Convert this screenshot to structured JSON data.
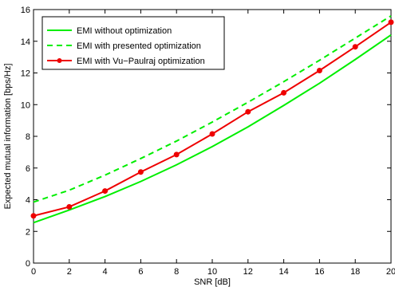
{
  "chart_data": {
    "type": "line",
    "xlabel": "SNR [dB]",
    "ylabel": "Expected mutual information [bps/Hz]",
    "xlim": [
      0,
      20
    ],
    "ylim": [
      0,
      16
    ],
    "x_ticks": [
      "0",
      "2",
      "4",
      "6",
      "8",
      "10",
      "12",
      "14",
      "16",
      "18",
      "20"
    ],
    "y_ticks": [
      "0",
      "2",
      "4",
      "6",
      "8",
      "10",
      "12",
      "14",
      "16"
    ],
    "grid": false,
    "legend_position": "top-left",
    "x": [
      0,
      2,
      4,
      6,
      8,
      10,
      12,
      14,
      16,
      18,
      20
    ],
    "series": [
      {
        "name": "EMI without optimization",
        "style": "solid",
        "marker": "none",
        "color": "#00ee00",
        "values": [
          2.55,
          3.35,
          4.2,
          5.15,
          6.2,
          7.35,
          8.6,
          9.95,
          11.35,
          12.85,
          14.4
        ]
      },
      {
        "name": "EMI with presented optimization",
        "style": "dashed",
        "marker": "none",
        "color": "#00ee00",
        "values": [
          3.85,
          4.6,
          5.55,
          6.6,
          7.7,
          8.9,
          10.15,
          11.45,
          12.8,
          14.2,
          15.6
        ]
      },
      {
        "name": "EMI with Vu−Paulraj optimization",
        "style": "solid",
        "marker": "circle",
        "color": "#ee0000",
        "values": [
          2.98,
          3.55,
          4.55,
          5.75,
          6.85,
          8.15,
          9.55,
          10.75,
          12.15,
          13.65,
          15.2
        ]
      }
    ]
  }
}
